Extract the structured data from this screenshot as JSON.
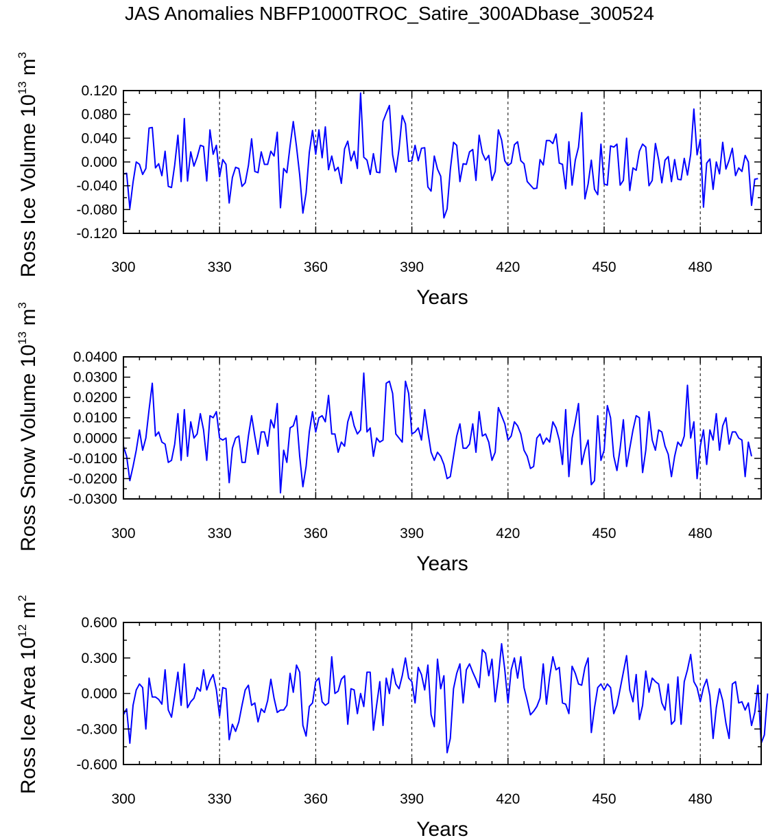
{
  "title": "JAS Anomalies NBFP1000TROC_Satire_300ADbase_300524",
  "colors": {
    "series": "#0000ff",
    "axis": "#000000",
    "grid": "#000000",
    "background": "#ffffff"
  },
  "chart_data": [
    {
      "type": "line",
      "ylabel": {
        "base": "Ross Ice Volume 10",
        "exp": "13",
        "unit": " m",
        "unit_exp": "3"
      },
      "xlabel": "Years",
      "xlim": [
        300,
        499
      ],
      "ylim": [
        -0.12,
        0.12
      ],
      "xticks": [
        "300",
        "330",
        "360",
        "390",
        "420",
        "450",
        "480"
      ],
      "yticks": [
        "0.120",
        "0.080",
        "0.040",
        "0.000",
        "-0.040",
        "-0.080",
        "-0.120"
      ],
      "grid_x": [
        330,
        360,
        390,
        420,
        450,
        480
      ],
      "series": [
        {
          "name": "Ross Ice Volume",
          "x_start": 300,
          "x_step": 1,
          "values": [
            -0.02,
            -0.019,
            -0.078,
            -0.034,
            0.0,
            -0.004,
            -0.021,
            -0.011,
            0.057,
            0.058,
            -0.01,
            -0.003,
            -0.023,
            0.018,
            -0.041,
            -0.043,
            -0.005,
            0.045,
            -0.033,
            0.073,
            -0.032,
            0.017,
            -0.007,
            0.008,
            0.028,
            0.026,
            -0.032,
            0.054,
            0.013,
            0.028,
            -0.025,
            0.004,
            -0.004,
            -0.069,
            -0.026,
            -0.009,
            -0.011,
            -0.041,
            -0.035,
            -0.006,
            0.039,
            -0.016,
            -0.018,
            0.017,
            -0.004,
            -0.004,
            0.018,
            0.01,
            0.05,
            -0.077,
            -0.011,
            -0.018,
            0.027,
            0.068,
            0.026,
            -0.022,
            -0.086,
            -0.052,
            0.016,
            0.053,
            0.013,
            0.054,
            0.007,
            0.059,
            -0.013,
            0.01,
            -0.015,
            -0.009,
            -0.036,
            0.022,
            0.035,
            0.002,
            0.018,
            -0.011,
            0.116,
            0.008,
            0.003,
            -0.021,
            0.014,
            -0.017,
            -0.018,
            0.068,
            0.082,
            0.095,
            0.012,
            -0.017,
            0.022,
            0.078,
            0.064,
            0.001,
            0.002,
            0.028,
            0.002,
            0.023,
            0.024,
            -0.042,
            -0.049,
            0.01,
            -0.012,
            -0.024,
            -0.094,
            -0.079,
            -0.013,
            0.033,
            0.028,
            -0.033,
            -0.003,
            -0.004,
            0.017,
            0.021,
            -0.031,
            0.045,
            0.015,
            0.003,
            0.011,
            -0.031,
            -0.016,
            0.054,
            0.037,
            0.002,
            -0.006,
            -0.002,
            0.029,
            0.034,
            0.002,
            -0.003,
            -0.033,
            -0.039,
            -0.045,
            -0.044,
            0.004,
            -0.005,
            0.036,
            0.036,
            0.031,
            0.047,
            -0.002,
            -0.004,
            -0.045,
            0.034,
            -0.039,
            0.003,
            0.025,
            0.083,
            -0.062,
            -0.037,
            0.003,
            -0.046,
            -0.055,
            0.03,
            -0.037,
            -0.039,
            0.027,
            0.025,
            0.03,
            -0.039,
            -0.031,
            0.04,
            -0.048,
            -0.01,
            -0.014,
            0.018,
            0.03,
            0.025,
            -0.04,
            -0.031,
            0.031,
            0.004,
            -0.035,
            0.003,
            0.009,
            -0.033,
            0.004,
            -0.029,
            -0.03,
            0.006,
            -0.022,
            0.013,
            0.089,
            0.012,
            0.038,
            -0.076,
            -0.002,
            0.005,
            -0.046,
            0.0,
            -0.02,
            0.033,
            -0.012,
            0.003,
            0.023,
            -0.023,
            -0.01,
            -0.016,
            0.011,
            0.0,
            -0.073,
            -0.029,
            -0.028
          ]
        }
      ]
    },
    {
      "type": "line",
      "ylabel": {
        "base": "Ross Snow Volume 10",
        "exp": "13",
        "unit": " m",
        "unit_exp": "3"
      },
      "xlabel": "Years",
      "xlim": [
        300,
        499
      ],
      "ylim": [
        -0.03,
        0.04
      ],
      "xticks": [
        "300",
        "330",
        "360",
        "390",
        "420",
        "450",
        "480"
      ],
      "yticks": [
        "0.0400",
        "0.0300",
        "0.0200",
        "0.0100",
        "0.0000",
        "-0.0100",
        "-0.0200",
        "-0.0300"
      ],
      "grid_x": [
        330,
        360,
        390,
        420,
        450,
        480
      ],
      "series": [
        {
          "name": "Ross Snow Volume",
          "x_start": 300,
          "x_step": 1,
          "values": [
            -0.004,
            -0.009,
            -0.021,
            -0.014,
            -0.006,
            0.004,
            -0.006,
            0.0,
            0.014,
            0.027,
            0.001,
            0.003,
            -0.002,
            -0.003,
            -0.012,
            -0.011,
            -0.003,
            0.012,
            -0.011,
            0.014,
            -0.009,
            0.008,
            0.0,
            0.002,
            0.012,
            0.004,
            -0.011,
            0.011,
            0.01,
            0.013,
            0.0,
            -0.001,
            0.0,
            -0.022,
            -0.005,
            0.0,
            0.001,
            -0.012,
            -0.012,
            0.001,
            0.011,
            0.001,
            -0.008,
            0.003,
            0.003,
            -0.004,
            0.009,
            0.005,
            0.017,
            -0.027,
            -0.006,
            -0.012,
            0.005,
            0.006,
            0.011,
            -0.009,
            -0.024,
            -0.014,
            0.003,
            0.013,
            0.003,
            0.01,
            0.011,
            0.008,
            0.021,
            0.002,
            0.002,
            -0.007,
            -0.002,
            -0.004,
            0.008,
            0.013,
            0.006,
            0.002,
            0.004,
            0.032,
            0.003,
            0.005,
            -0.009,
            0.0,
            -0.002,
            -0.001,
            0.027,
            0.028,
            0.022,
            0.002,
            0.0,
            -0.002,
            0.028,
            0.022,
            0.002,
            0.003,
            0.005,
            -0.001,
            0.014,
            0.003,
            -0.007,
            -0.011,
            -0.007,
            -0.009,
            -0.013,
            -0.02,
            -0.019,
            -0.009,
            0.001,
            0.007,
            -0.005,
            -0.005,
            -0.003,
            0.007,
            -0.007,
            0.013,
            0.001,
            0.002,
            -0.002,
            -0.011,
            -0.007,
            0.015,
            0.011,
            0.007,
            -0.001,
            0.001,
            0.008,
            0.006,
            0.002,
            -0.006,
            -0.009,
            -0.015,
            -0.014,
            0.0,
            0.002,
            -0.003,
            0.0,
            -0.002,
            0.008,
            0.005,
            -0.001,
            -0.013,
            0.014,
            -0.019,
            0.0,
            0.008,
            0.017,
            -0.013,
            -0.006,
            -0.001,
            -0.023,
            -0.021,
            0.011,
            -0.011,
            -0.006,
            0.016,
            0.01,
            -0.009,
            -0.016,
            -0.005,
            0.009,
            -0.014,
            -0.005,
            0.004,
            0.011,
            0.01,
            -0.017,
            -0.006,
            0.013,
            -0.001,
            -0.006,
            0.004,
            0.003,
            -0.004,
            -0.008,
            -0.019,
            -0.009,
            -0.002,
            -0.004,
            0.001,
            0.026,
            0.0,
            0.008,
            -0.02,
            -0.004,
            0.004,
            -0.013,
            0.004,
            -0.001,
            0.012,
            -0.006,
            0.006,
            0.01,
            -0.003,
            0.003,
            0.003,
            0.0,
            -0.001,
            -0.019,
            -0.002,
            -0.009
          ]
        }
      ]
    },
    {
      "type": "line",
      "ylabel": {
        "base": "Ross Ice Area 10",
        "exp": "12",
        "unit": " m",
        "unit_exp": "2"
      },
      "xlabel": "Years",
      "xlim": [
        300,
        499
      ],
      "ylim": [
        -0.6,
        0.6
      ],
      "xticks": [
        "300",
        "330",
        "360",
        "390",
        "420",
        "450",
        "480"
      ],
      "yticks": [
        "0.600",
        "0.300",
        "0.000",
        "-0.300",
        "-0.600"
      ],
      "grid_x": [
        330,
        360,
        390,
        420,
        450,
        480
      ],
      "series": [
        {
          "name": "Ross Ice Area",
          "x_start": 300,
          "x_step": 1,
          "values": [
            -0.18,
            -0.13,
            -0.42,
            -0.1,
            0.03,
            0.08,
            0.05,
            -0.3,
            0.13,
            -0.03,
            -0.03,
            -0.05,
            -0.09,
            0.2,
            -0.14,
            -0.2,
            -0.02,
            0.18,
            -0.1,
            0.25,
            -0.12,
            -0.07,
            -0.04,
            0.05,
            0.02,
            0.2,
            0.03,
            0.11,
            0.16,
            0.03,
            -0.19,
            0.05,
            0.04,
            -0.39,
            -0.26,
            -0.32,
            -0.24,
            -0.1,
            0.03,
            0.07,
            -0.1,
            -0.08,
            -0.24,
            -0.13,
            -0.16,
            -0.06,
            0.12,
            -0.04,
            -0.16,
            -0.14,
            -0.14,
            -0.1,
            0.17,
            0.01,
            0.24,
            0.18,
            -0.27,
            -0.36,
            -0.11,
            -0.08,
            0.1,
            0.13,
            -0.07,
            -0.1,
            -0.08,
            0.31,
            0.0,
            0.02,
            0.12,
            0.15,
            -0.26,
            0.04,
            0.03,
            -0.17,
            0.0,
            -0.11,
            0.18,
            0.18,
            -0.31,
            -0.1,
            0.1,
            -0.27,
            0.13,
            0.0,
            0.21,
            0.08,
            0.04,
            0.15,
            0.3,
            0.13,
            0.1,
            -0.08,
            0.22,
            0.16,
            0.03,
            0.24,
            -0.18,
            -0.28,
            0.29,
            0.04,
            0.15,
            -0.5,
            -0.38,
            0.04,
            0.17,
            0.25,
            -0.08,
            0.2,
            0.25,
            0.18,
            0.12,
            0.05,
            0.37,
            0.34,
            0.15,
            0.29,
            -0.07,
            0.14,
            0.42,
            0.2,
            -0.08,
            0.2,
            0.3,
            0.13,
            0.31,
            0.05,
            -0.06,
            -0.18,
            -0.15,
            -0.11,
            -0.04,
            0.25,
            -0.09,
            0.14,
            0.31,
            0.2,
            0.22,
            -0.08,
            -0.09,
            -0.17,
            0.23,
            0.17,
            0.08,
            0.07,
            0.22,
            0.3,
            -0.33,
            -0.12,
            0.05,
            0.08,
            0.03,
            0.08,
            0.05,
            -0.17,
            -0.1,
            0.04,
            0.18,
            0.32,
            0.03,
            -0.07,
            0.16,
            -0.22,
            -0.1,
            0.19,
            0.01,
            0.13,
            0.1,
            0.08,
            -0.08,
            -0.14,
            0.08,
            -0.26,
            -0.23,
            0.14,
            -0.26,
            0.1,
            0.2,
            0.33,
            0.1,
            0.05,
            -0.07,
            0.05,
            0.12,
            -0.02,
            -0.38,
            -0.12,
            0.04,
            -0.06,
            -0.25,
            -0.38,
            0.08,
            0.1,
            -0.08,
            -0.07,
            -0.14,
            -0.08,
            -0.27,
            -0.16,
            0.07,
            -0.42,
            -0.35,
            0.0
          ]
        }
      ]
    }
  ]
}
